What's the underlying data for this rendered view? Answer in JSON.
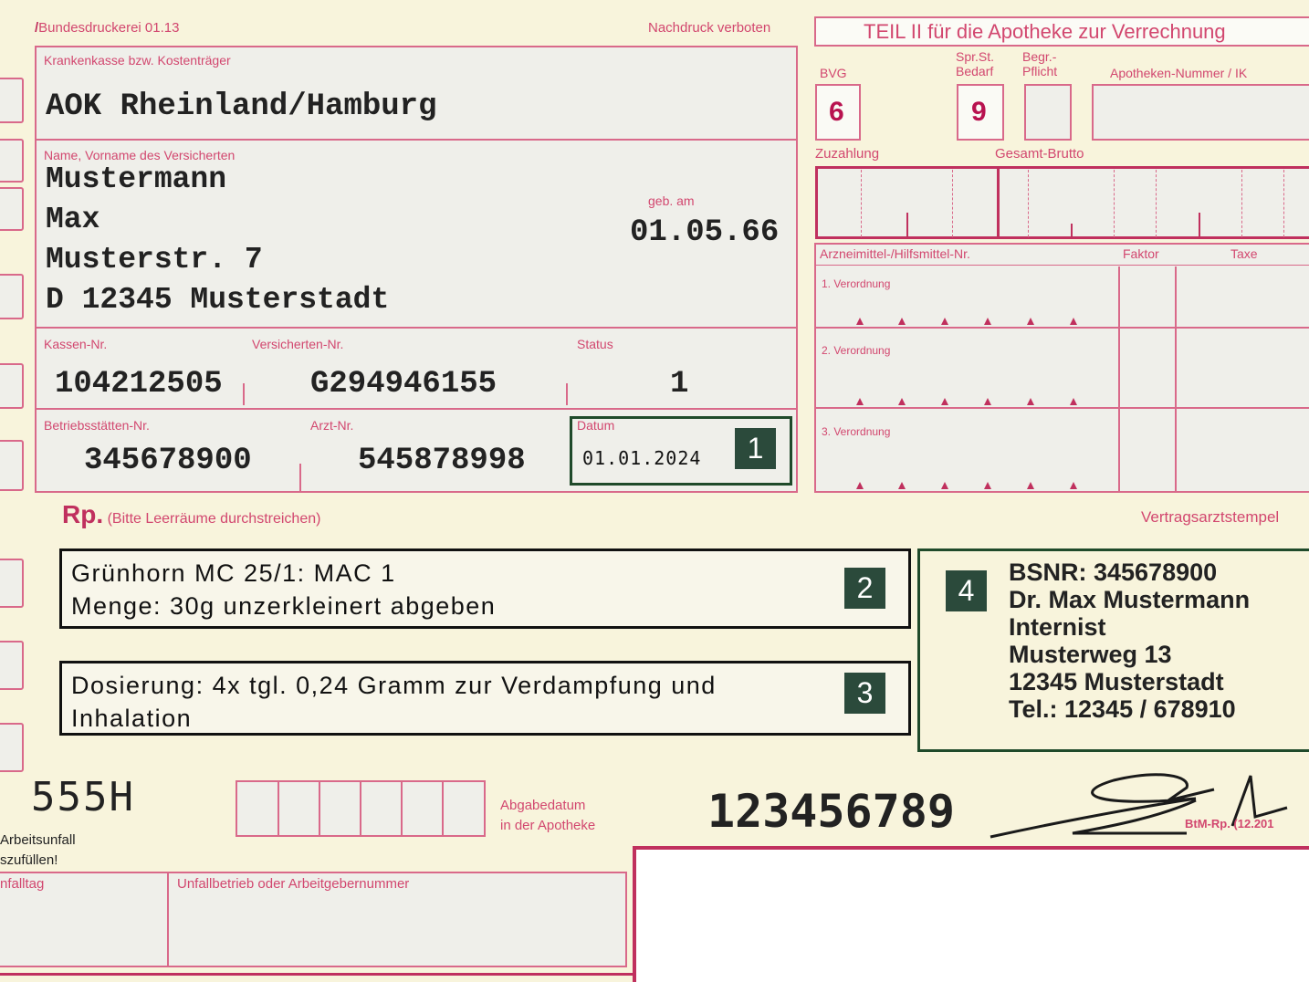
{
  "header": {
    "printer": "Bundesdruckerei 01.13",
    "reprint_notice": "Nachdruck verboten"
  },
  "patient": {
    "insurer_label": "Krankenkasse bzw. Kostenträger",
    "insurer": "AOK Rheinland/Hamburg",
    "name_label": "Name, Vorname des Versicherten",
    "surname": "Mustermann",
    "first_name": "Max",
    "street": "Musterstr. 7",
    "city": "D 12345 Musterstadt",
    "dob_label": "geb. am",
    "dob": "01.05.66",
    "kassen_nr_label": "Kassen-Nr.",
    "kassen_nr": "104212505",
    "versicherten_nr_label": "Versicherten-Nr.",
    "versicherten_nr": "G294946155",
    "status_label": "Status",
    "status": "1",
    "bsnr_label": "Betriebsstätten-Nr.",
    "bsnr": "345678900",
    "arzt_nr_label": "Arzt-Nr.",
    "arzt_nr": "545878998",
    "datum_label": "Datum",
    "datum": "01.01.2024"
  },
  "pharmacy": {
    "title": "TEIL II für die Apotheke zur Verrechnung",
    "bvg_label": "BVG",
    "bvg_value": "6",
    "sprst_label_1": "Spr.St.",
    "sprst_label_2": "Bedarf",
    "sprst_value": "9",
    "begr_label_1": "Begr.-",
    "begr_label_2": "Pflicht",
    "apotheken_label": "Apotheken-Nummer / IK",
    "zuzahlung_label": "Zuzahlung",
    "brutto_label": "Gesamt-Brutto",
    "arzneimittel_label": "Arzneimittel-/Hilfsmittel-Nr.",
    "faktor_label": "Faktor",
    "taxe_label": "Taxe",
    "rows": [
      "1. Verordnung",
      "2. Verordnung",
      "3. Verordnung"
    ]
  },
  "rx": {
    "label": "Rp.",
    "hint": "(Bitte Leerräume durchstreichen)",
    "stamp_label": "Vertragsarztstempel",
    "line1": "Grünhorn MC 25/1: MAC 1\nMenge: 30g unzerkleinert abgeben",
    "line2": "Dosierung: 4x tgl. 0,24 Gramm zur Verdampfung und\nInhalation"
  },
  "stamp": {
    "bsnr": "BSNR: 345678900",
    "name": "Dr. Max Mustermann",
    "specialty": "Internist",
    "street": "Musterweg 13",
    "city": "12345 Musterstadt",
    "phone": "Tel.: 12345 / 678910"
  },
  "badges": [
    "1",
    "2",
    "3",
    "4"
  ],
  "footer": {
    "code": "555H",
    "abgabe_label_1": "Abgabedatum",
    "abgabe_label_2": "in der Apotheke",
    "number": "123456789",
    "btm": "BtM-Rp. (12.201",
    "accident_1": "Arbeitsunfall",
    "accident_2": "szufüllen!",
    "unfalltag_label": "nfalltag",
    "unfallbetrieb_label": "Unfallbetrieb oder Arbeitgebernummer"
  },
  "colors": {
    "form_red": "#d9698a",
    "highlight_green": "#1f4a2a",
    "badge": "#2b4a3b",
    "paper": "#f8f4dc"
  }
}
